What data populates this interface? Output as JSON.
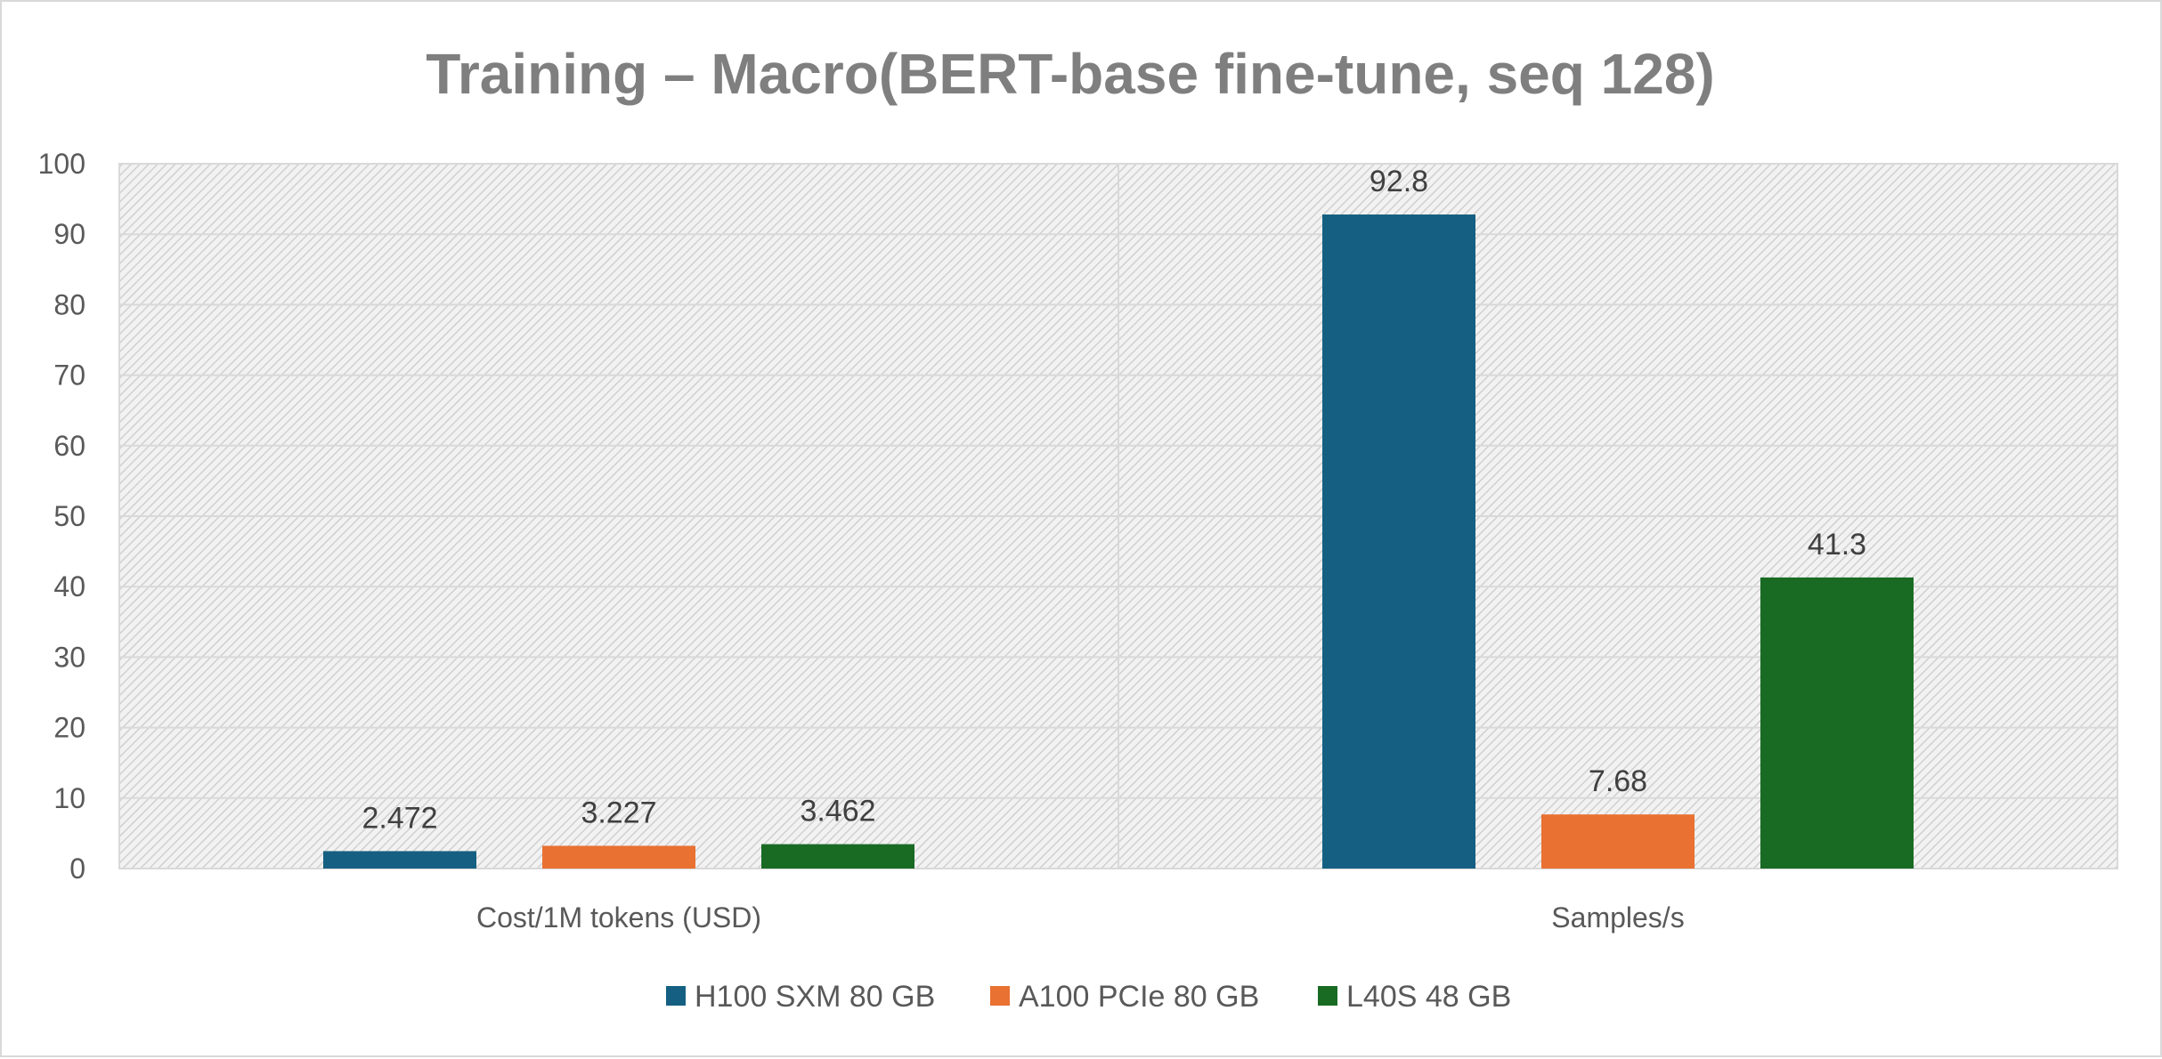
{
  "chart_data": {
    "type": "bar",
    "title": "Training – Macro(BERT-base fine-tune, seq 128)",
    "xlabel": "",
    "ylabel": "",
    "categories": [
      "Cost/1M tokens (USD)",
      "Samples/s"
    ],
    "series": [
      {
        "name": "H100 SXM 80 GB",
        "color": "#156082",
        "values": [
          2.472,
          92.8
        ],
        "labels": [
          "2.472",
          "92.8"
        ]
      },
      {
        "name": "A100 PCIe 80 GB",
        "color": "#E97132",
        "values": [
          3.227,
          7.68
        ],
        "labels": [
          "3.227",
          "7.68"
        ]
      },
      {
        "name": "L40S 48 GB",
        "color": "#196B24",
        "values": [
          3.462,
          41.3
        ],
        "labels": [
          "3.462",
          "41.3"
        ]
      }
    ],
    "ylim": [
      0,
      100
    ],
    "yticks": [
      "0",
      "10",
      "20",
      "30",
      "40",
      "50",
      "60",
      "70",
      "80",
      "90",
      "100"
    ],
    "grid": true,
    "legend_position": "bottom",
    "plot_background": "hatched light gray"
  }
}
